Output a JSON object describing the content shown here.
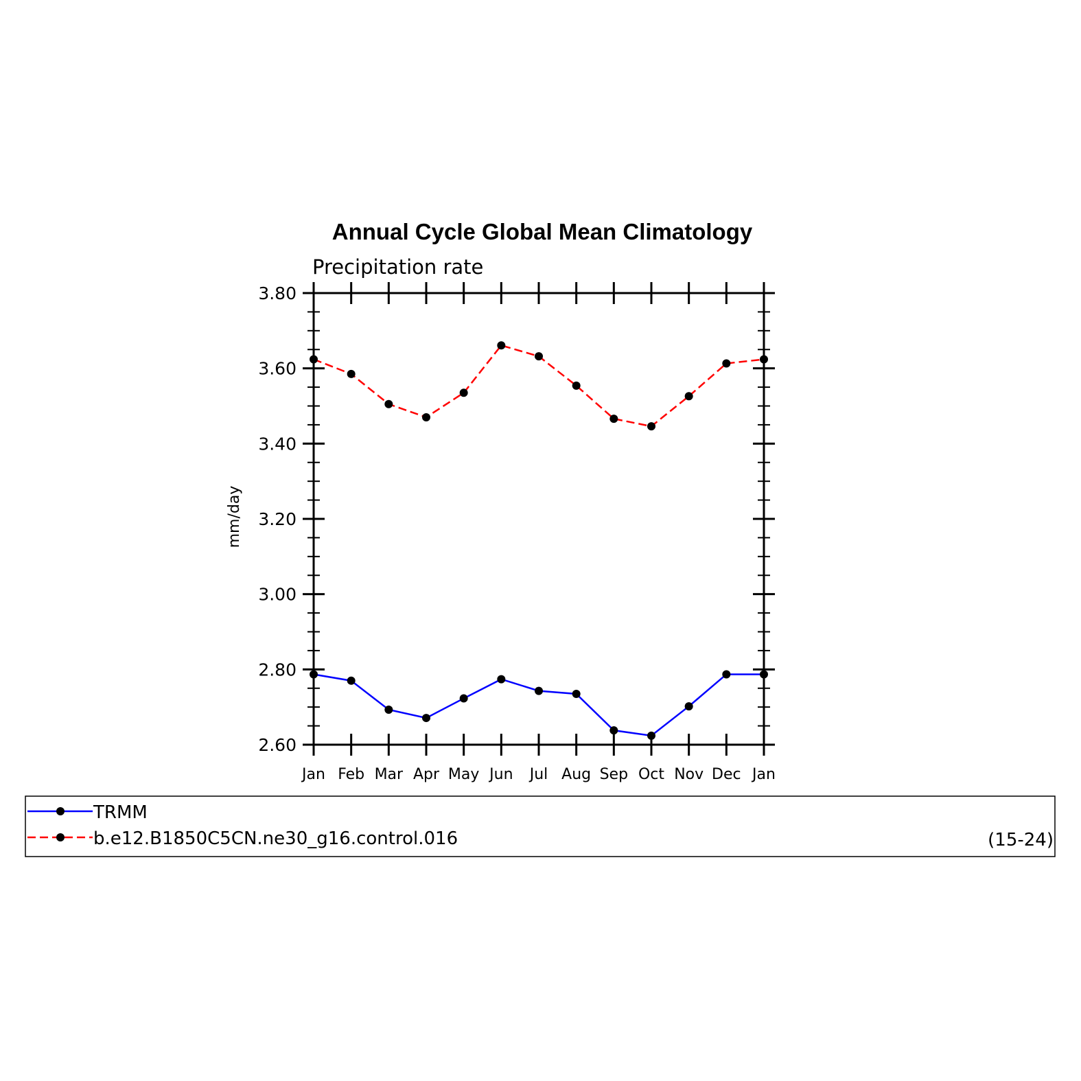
{
  "chart_data": {
    "type": "line",
    "title": "Annual Cycle Global Mean Climatology",
    "subtitle": "Precipitation rate",
    "ylabel": "mm/day",
    "xlabel": "",
    "ylim": [
      2.6,
      3.8
    ],
    "yticks": [
      "2.60",
      "2.80",
      "3.00",
      "3.20",
      "3.40",
      "3.60",
      "3.80"
    ],
    "categories": [
      "Jan",
      "Feb",
      "Mar",
      "Apr",
      "May",
      "Jun",
      "Jul",
      "Aug",
      "Sep",
      "Oct",
      "Nov",
      "Dec",
      "Jan"
    ],
    "grid": false,
    "legend_position": "bottom",
    "series": [
      {
        "name": "TRMM",
        "color": "#0000ff",
        "dash": "solid",
        "values": [
          2.787,
          2.77,
          2.693,
          2.671,
          2.723,
          2.774,
          2.743,
          2.735,
          2.638,
          2.624,
          2.702,
          2.787,
          2.787
        ]
      },
      {
        "name": "b.e12.B1850C5CN.ne30_g16.control.016",
        "color": "#ff0000",
        "dash": "dashed",
        "values": [
          3.624,
          3.585,
          3.505,
          3.47,
          3.535,
          3.661,
          3.632,
          3.554,
          3.466,
          3.446,
          3.526,
          3.613,
          3.624
        ]
      }
    ],
    "legend_note": "(15-24)"
  }
}
